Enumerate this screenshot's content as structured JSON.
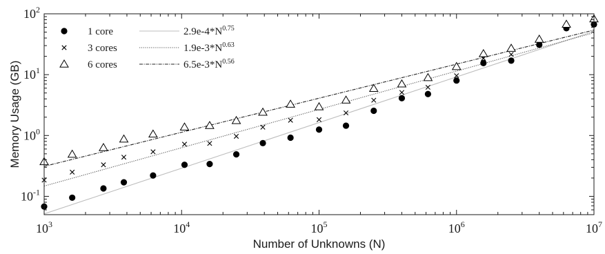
{
  "chart_data": {
    "type": "scatter",
    "title": "",
    "xlabel": "Number of Unknowns (N)",
    "ylabel": "Memory Usage (GB)",
    "xscale": "log",
    "yscale": "log",
    "xlim": [
      1000,
      10000000
    ],
    "ylim": [
      0.05,
      100
    ],
    "grid": false,
    "legend_position": "top-left",
    "x_ticks": [
      {
        "base": "10",
        "exp": "3",
        "value": 1000
      },
      {
        "base": "10",
        "exp": "4",
        "value": 10000
      },
      {
        "base": "10",
        "exp": "5",
        "value": 100000
      },
      {
        "base": "10",
        "exp": "6",
        "value": 1000000
      },
      {
        "base": "10",
        "exp": "7",
        "value": 10000000
      }
    ],
    "y_ticks": [
      {
        "base": "10",
        "exp": "-1",
        "value": 0.1
      },
      {
        "base": "10",
        "exp": "0",
        "value": 1
      },
      {
        "base": "10",
        "exp": "1",
        "value": 10
      },
      {
        "base": "10",
        "exp": "2",
        "value": 100
      }
    ],
    "x": [
      1000,
      1600,
      2700,
      3800,
      6200,
      10500,
      16000,
      25000,
      39000,
      62000,
      100000,
      157000,
      250000,
      400000,
      620000,
      1000000,
      1570000,
      2500000,
      4000000,
      6300000,
      10000000
    ],
    "series": [
      {
        "name": "1 core",
        "marker": "filled-circle",
        "color": "#000000",
        "values": [
          0.068,
          0.095,
          0.135,
          0.17,
          0.22,
          0.33,
          0.34,
          0.49,
          0.75,
          0.92,
          1.25,
          1.45,
          2.55,
          4.1,
          4.8,
          8.0,
          15.5,
          17.0,
          31.0,
          58.0,
          67.0
        ]
      },
      {
        "name": "3 cores",
        "marker": "cross",
        "color": "#000000",
        "values": [
          0.185,
          0.25,
          0.33,
          0.44,
          0.54,
          0.72,
          0.74,
          0.97,
          1.37,
          1.78,
          1.82,
          2.35,
          3.8,
          5.1,
          6.2,
          9.6,
          18.5,
          21.5,
          33.0,
          63.0,
          73.0
        ]
      },
      {
        "name": "6 cores",
        "marker": "open-triangle",
        "color": "#000000",
        "values": [
          0.37,
          0.49,
          0.63,
          0.87,
          1.05,
          1.37,
          1.45,
          1.75,
          2.4,
          3.25,
          2.95,
          3.8,
          5.9,
          7.0,
          8.9,
          13.5,
          22.0,
          27.0,
          38.0,
          67.0,
          82.0
        ]
      }
    ],
    "fits": [
      {
        "base": "2.9e-4*N",
        "exp": "0.75",
        "coef": 0.00029,
        "power": 0.75,
        "color": "#bdbdbd",
        "dash": ""
      },
      {
        "base": "1.9e-3*N",
        "exp": "0.63",
        "coef": 0.0019,
        "power": 0.63,
        "color": "#555555",
        "dash": "1.2,1.6"
      },
      {
        "base": "6.5e-3*N",
        "exp": "0.56",
        "coef": 0.0065,
        "power": 0.56,
        "color": "#222222",
        "dash": "5,1.5,1.2,1.5"
      }
    ]
  }
}
